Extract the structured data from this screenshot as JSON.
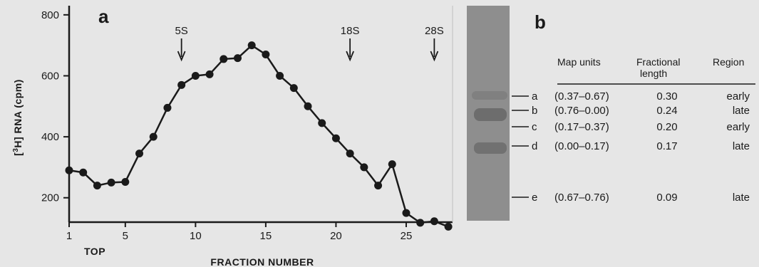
{
  "chart_data": [
    {
      "type": "line",
      "panel_label": "a",
      "title": "",
      "xlabel": "FRACTION NUMBER",
      "ylabel": "[3H] RNA (cpm)",
      "x_extra_label": "TOP",
      "xlim": [
        1,
        28.3
      ],
      "ylim": [
        120,
        830
      ],
      "x_ticks": [
        1,
        5,
        10,
        15,
        20,
        25
      ],
      "y_ticks": [
        200,
        400,
        600,
        800
      ],
      "x": [
        1,
        2,
        3,
        4,
        5,
        6,
        7,
        8,
        9,
        10,
        11,
        12,
        13,
        14,
        15,
        16,
        17,
        18,
        19,
        20,
        21,
        22,
        23,
        24,
        25,
        26,
        27,
        28
      ],
      "values": [
        290,
        283,
        240,
        250,
        252,
        345,
        400,
        495,
        570,
        600,
        605,
        655,
        658,
        700,
        670,
        600,
        560,
        500,
        445,
        395,
        345,
        300,
        240,
        310,
        150,
        118,
        123,
        105
      ],
      "markers": [
        {
          "label": "5S",
          "x": 9
        },
        {
          "label": "18S",
          "x": 21
        },
        {
          "label": "28S",
          "x": 27
        }
      ]
    },
    {
      "type": "table",
      "panel_label": "b",
      "columns": [
        "Map units",
        "Fractional length",
        "Region"
      ],
      "rows": [
        {
          "band": "a",
          "map_units": "(0.37–0.67)",
          "fractional_length": "0.30",
          "region": "early"
        },
        {
          "band": "b",
          "map_units": "(0.76–0.00)",
          "fractional_length": "0.24",
          "region": "late"
        },
        {
          "band": "c",
          "map_units": "(0.17–0.37)",
          "fractional_length": "0.20",
          "region": "early"
        },
        {
          "band": "d",
          "map_units": "(0.00–0.17)",
          "fractional_length": "0.17",
          "region": "late"
        },
        {
          "band": "e",
          "map_units": "(0.67–0.76)",
          "fractional_length": "0.09",
          "region": "late"
        }
      ]
    }
  ],
  "colors": {
    "background": "#e6e6e6",
    "ink": "#1a1a1a",
    "gel": "#8e8e8e",
    "gel_band": "#5a5a5a"
  }
}
